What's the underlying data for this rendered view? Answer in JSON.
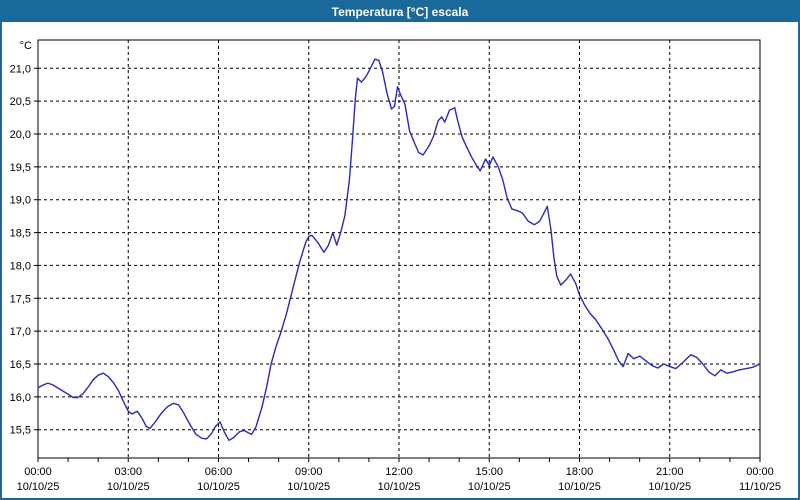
{
  "window": {
    "title": "Temperatura [°C] escala",
    "titlebar_color": "#196a9b",
    "border_color": "#196a9b"
  },
  "chart_data": {
    "type": "line",
    "title": "Temperatura [°C] escala",
    "legend": "none",
    "grid": "dashed-black",
    "line_color": "#2b2bb2",
    "grid_color": "#000000",
    "plot_background": "#ffffff",
    "y_axis": {
      "unit_label": "°C",
      "range_shown": [
        15.07,
        21.43
      ],
      "tick_step": 0.5,
      "ticks": [
        {
          "value": 21.0,
          "label": "21,0"
        },
        {
          "value": 20.5,
          "label": "20,5"
        },
        {
          "value": 20.0,
          "label": "20,0"
        },
        {
          "value": 19.5,
          "label": "19,5"
        },
        {
          "value": 19.0,
          "label": "19,0"
        },
        {
          "value": 18.5,
          "label": "18,5"
        },
        {
          "value": 18.0,
          "label": "18,0"
        },
        {
          "value": 17.5,
          "label": "17,5"
        },
        {
          "value": 17.0,
          "label": "17,0"
        },
        {
          "value": 16.5,
          "label": "16,5"
        },
        {
          "value": 16.0,
          "label": "16,0"
        },
        {
          "value": 15.5,
          "label": "15,5"
        }
      ]
    },
    "x_axis": {
      "hours_range": [
        0,
        24
      ],
      "major_tick_hours": 3,
      "minor_tick_hours": 1,
      "ticks": [
        {
          "hour": 0,
          "time": "00:00",
          "date": "10/10/25"
        },
        {
          "hour": 3,
          "time": "03:00",
          "date": "10/10/25"
        },
        {
          "hour": 6,
          "time": "06:00",
          "date": "10/10/25"
        },
        {
          "hour": 9,
          "time": "09:00",
          "date": "10/10/25"
        },
        {
          "hour": 12,
          "time": "12:00",
          "date": "10/10/25"
        },
        {
          "hour": 15,
          "time": "15:00",
          "date": "10/10/25"
        },
        {
          "hour": 18,
          "time": "18:00",
          "date": "10/10/25"
        },
        {
          "hour": 21,
          "time": "21:00",
          "date": "10/10/25"
        },
        {
          "hour": 24,
          "time": "00:00",
          "date": "11/10/25"
        }
      ]
    },
    "series": [
      {
        "name": "Temperatura",
        "points": [
          [
            0.0,
            16.14
          ],
          [
            0.17,
            16.18
          ],
          [
            0.33,
            16.21
          ],
          [
            0.5,
            16.18
          ],
          [
            0.75,
            16.11
          ],
          [
            1.0,
            16.04
          ],
          [
            1.17,
            15.99
          ],
          [
            1.33,
            15.99
          ],
          [
            1.5,
            16.05
          ],
          [
            1.67,
            16.15
          ],
          [
            1.83,
            16.26
          ],
          [
            2.0,
            16.33
          ],
          [
            2.17,
            16.36
          ],
          [
            2.33,
            16.31
          ],
          [
            2.5,
            16.22
          ],
          [
            2.67,
            16.1
          ],
          [
            2.83,
            15.94
          ],
          [
            3.0,
            15.78
          ],
          [
            3.13,
            15.74
          ],
          [
            3.3,
            15.78
          ],
          [
            3.45,
            15.68
          ],
          [
            3.6,
            15.55
          ],
          [
            3.72,
            15.52
          ],
          [
            3.9,
            15.62
          ],
          [
            4.1,
            15.75
          ],
          [
            4.3,
            15.85
          ],
          [
            4.5,
            15.9
          ],
          [
            4.67,
            15.88
          ],
          [
            4.85,
            15.75
          ],
          [
            5.05,
            15.58
          ],
          [
            5.25,
            15.43
          ],
          [
            5.45,
            15.37
          ],
          [
            5.6,
            15.36
          ],
          [
            5.75,
            15.43
          ],
          [
            5.9,
            15.55
          ],
          [
            6.05,
            15.62
          ],
          [
            6.2,
            15.46
          ],
          [
            6.35,
            15.34
          ],
          [
            6.5,
            15.38
          ],
          [
            6.7,
            15.47
          ],
          [
            6.85,
            15.49
          ],
          [
            7.0,
            15.45
          ],
          [
            7.1,
            15.43
          ],
          [
            7.25,
            15.55
          ],
          [
            7.45,
            15.85
          ],
          [
            7.6,
            16.15
          ],
          [
            7.75,
            16.5
          ],
          [
            7.9,
            16.75
          ],
          [
            8.05,
            16.95
          ],
          [
            8.25,
            17.25
          ],
          [
            8.5,
            17.7
          ],
          [
            8.7,
            18.05
          ],
          [
            8.9,
            18.35
          ],
          [
            9.0,
            18.44
          ],
          [
            9.1,
            18.46
          ],
          [
            9.3,
            18.35
          ],
          [
            9.5,
            18.2
          ],
          [
            9.65,
            18.3
          ],
          [
            9.8,
            18.5
          ],
          [
            9.93,
            18.31
          ],
          [
            10.05,
            18.48
          ],
          [
            10.2,
            18.75
          ],
          [
            10.35,
            19.3
          ],
          [
            10.45,
            19.9
          ],
          [
            10.55,
            20.55
          ],
          [
            10.62,
            20.85
          ],
          [
            10.75,
            20.79
          ],
          [
            10.9,
            20.87
          ],
          [
            11.05,
            21.0
          ],
          [
            11.2,
            21.14
          ],
          [
            11.33,
            21.12
          ],
          [
            11.45,
            20.95
          ],
          [
            11.6,
            20.62
          ],
          [
            11.75,
            20.38
          ],
          [
            11.85,
            20.42
          ],
          [
            11.95,
            20.72
          ],
          [
            12.05,
            20.6
          ],
          [
            12.2,
            20.45
          ],
          [
            12.35,
            20.05
          ],
          [
            12.5,
            19.88
          ],
          [
            12.65,
            19.72
          ],
          [
            12.8,
            19.68
          ],
          [
            13.0,
            19.82
          ],
          [
            13.15,
            19.97
          ],
          [
            13.3,
            20.2
          ],
          [
            13.42,
            20.26
          ],
          [
            13.52,
            20.18
          ],
          [
            13.68,
            20.36
          ],
          [
            13.85,
            20.4
          ],
          [
            13.95,
            20.2
          ],
          [
            14.1,
            19.95
          ],
          [
            14.25,
            19.8
          ],
          [
            14.4,
            19.66
          ],
          [
            14.55,
            19.54
          ],
          [
            14.7,
            19.44
          ],
          [
            14.88,
            19.62
          ],
          [
            15.0,
            19.52
          ],
          [
            15.12,
            19.65
          ],
          [
            15.3,
            19.5
          ],
          [
            15.45,
            19.3
          ],
          [
            15.6,
            19.02
          ],
          [
            15.75,
            18.86
          ],
          [
            15.95,
            18.83
          ],
          [
            16.1,
            18.8
          ],
          [
            16.3,
            18.67
          ],
          [
            16.5,
            18.62
          ],
          [
            16.67,
            18.67
          ],
          [
            16.82,
            18.8
          ],
          [
            16.93,
            18.9
          ],
          [
            17.05,
            18.55
          ],
          [
            17.15,
            18.12
          ],
          [
            17.25,
            17.83
          ],
          [
            17.38,
            17.7
          ],
          [
            17.55,
            17.78
          ],
          [
            17.7,
            17.87
          ],
          [
            17.87,
            17.73
          ],
          [
            18.0,
            17.55
          ],
          [
            18.17,
            17.4
          ],
          [
            18.35,
            17.27
          ],
          [
            18.55,
            17.17
          ],
          [
            18.75,
            17.03
          ],
          [
            18.95,
            16.88
          ],
          [
            19.15,
            16.7
          ],
          [
            19.3,
            16.55
          ],
          [
            19.45,
            16.46
          ],
          [
            19.62,
            16.66
          ],
          [
            19.8,
            16.58
          ],
          [
            20.0,
            16.62
          ],
          [
            20.2,
            16.55
          ],
          [
            20.4,
            16.48
          ],
          [
            20.6,
            16.44
          ],
          [
            20.8,
            16.5
          ],
          [
            21.0,
            16.46
          ],
          [
            21.2,
            16.43
          ],
          [
            21.45,
            16.53
          ],
          [
            21.7,
            16.64
          ],
          [
            21.9,
            16.6
          ],
          [
            22.1,
            16.5
          ],
          [
            22.3,
            16.38
          ],
          [
            22.5,
            16.32
          ],
          [
            22.7,
            16.41
          ],
          [
            22.9,
            16.36
          ],
          [
            23.1,
            16.38
          ],
          [
            23.3,
            16.41
          ],
          [
            23.55,
            16.43
          ],
          [
            23.75,
            16.45
          ],
          [
            24.0,
            16.5
          ]
        ]
      }
    ]
  }
}
